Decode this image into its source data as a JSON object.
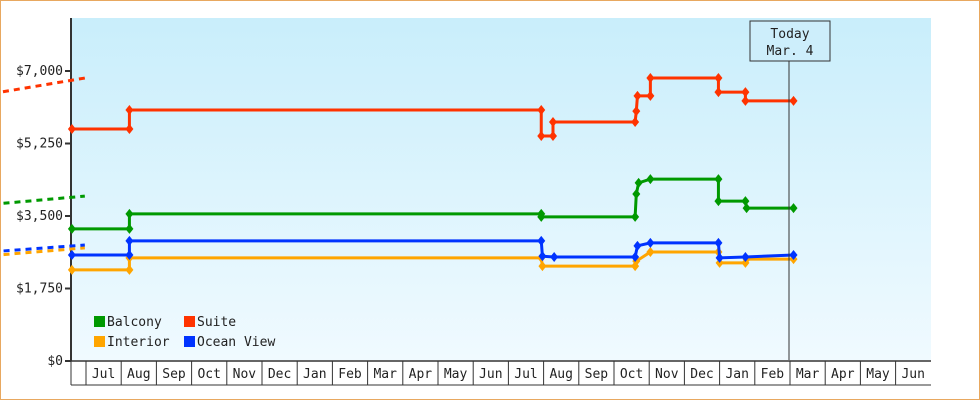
{
  "chart_data": {
    "type": "line",
    "title": "",
    "xlabel": "",
    "ylabel": "",
    "ylim": [
      0,
      8000
    ],
    "y_ticks": [
      "$0",
      "$1,750",
      "$3,500",
      "$5,250",
      "$7,000"
    ],
    "y_tick_values": [
      0,
      1750,
      3500,
      5250,
      7000
    ],
    "x_ticks": [
      "Jul",
      "Aug",
      "Sep",
      "Oct",
      "Nov",
      "Dec",
      "Jan",
      "Feb",
      "Mar",
      "Apr",
      "May",
      "Jun",
      "Jul",
      "Aug",
      "Sep",
      "Oct",
      "Nov",
      "Dec",
      "Jan",
      "Feb",
      "Mar",
      "Apr",
      "May",
      "Jun"
    ],
    "grid": false,
    "background": [
      "#c9eefb",
      "#f0faff"
    ],
    "today": {
      "line1": "Today",
      "line2": "Mar. 4",
      "date": "Mar 4"
    },
    "legend_placement": "bottom-left",
    "series": [
      {
        "name": "Balcony",
        "color": "#009900",
        "points": [
          [
            "Jun 19",
            3190
          ],
          [
            "Aug 8",
            3190
          ],
          [
            "Aug 8",
            3550
          ],
          [
            "Jul 29",
            3550
          ],
          [
            "Jul 29",
            3480
          ],
          [
            "Oct 19",
            3480
          ],
          [
            "Oct 20",
            4030
          ],
          [
            "Oct 22",
            4300
          ],
          [
            "Nov 2",
            4390
          ],
          [
            "Dec 30",
            4390
          ],
          [
            "Dec 30",
            3860
          ],
          [
            "Jan 23",
            3860
          ],
          [
            "Jan 24",
            3690
          ],
          [
            "Mar 4",
            3690
          ]
        ],
        "forecast": [
          [
            "Mar 4",
            3690
          ],
          [
            "Jun 30",
            3980
          ]
        ]
      },
      {
        "name": "Suite",
        "color": "#ff3300",
        "points": [
          [
            "Jun 19",
            5600
          ],
          [
            "Aug 8",
            5600
          ],
          [
            "Aug 8",
            6060
          ],
          [
            "Jul 29",
            6060
          ],
          [
            "Jul 29",
            5430
          ],
          [
            "Aug 9",
            5430
          ],
          [
            "Aug 9",
            5770
          ],
          [
            "Oct 19",
            5770
          ],
          [
            "Oct 20",
            6030
          ],
          [
            "Oct 21",
            6400
          ],
          [
            "Nov 2",
            6400
          ],
          [
            "Nov 2",
            6830
          ],
          [
            "Dec 30",
            6830
          ],
          [
            "Dec 30",
            6490
          ],
          [
            "Jan 23",
            6490
          ],
          [
            "Jan 23",
            6280
          ],
          [
            "Mar 4",
            6280
          ]
        ],
        "forecast": [
          [
            "Mar 4",
            6280
          ],
          [
            "Jun 30",
            6830
          ]
        ]
      },
      {
        "name": "Interior",
        "color": "#ffa500",
        "points": [
          [
            "Jun 19",
            2200
          ],
          [
            "Aug 8",
            2200
          ],
          [
            "Aug 8",
            2490
          ],
          [
            "Jul 29",
            2490
          ],
          [
            "Jul 30",
            2290
          ],
          [
            "Oct 19",
            2290
          ],
          [
            "Oct 20",
            2410
          ],
          [
            "Nov 2",
            2630
          ],
          [
            "Dec 30",
            2630
          ],
          [
            "Dec 31",
            2370
          ],
          [
            "Jan 23",
            2370
          ],
          [
            "Jan 24",
            2460
          ],
          [
            "Mar 4",
            2460
          ]
        ],
        "forecast": [
          [
            "Mar 4",
            2460
          ],
          [
            "Jun 30",
            2730
          ]
        ]
      },
      {
        "name": "Ocean View",
        "color": "#0033ff",
        "points": [
          [
            "Jun 19",
            2560
          ],
          [
            "Aug 8",
            2560
          ],
          [
            "Aug 8",
            2900
          ],
          [
            "Jul 29",
            2900
          ],
          [
            "Jul 30",
            2530
          ],
          [
            "Aug 10",
            2510
          ],
          [
            "Oct 19",
            2510
          ],
          [
            "Oct 21",
            2780
          ],
          [
            "Nov 2",
            2850
          ],
          [
            "Dec 30",
            2850
          ],
          [
            "Dec 31",
            2490
          ],
          [
            "Jan 23",
            2510
          ],
          [
            "Mar 4",
            2560
          ]
        ],
        "forecast": [
          [
            "Mar 4",
            2560
          ],
          [
            "Jun 30",
            2800
          ]
        ]
      }
    ]
  }
}
